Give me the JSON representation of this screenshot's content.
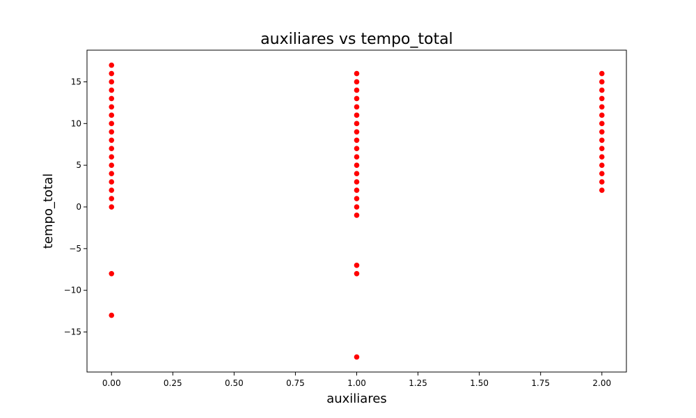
{
  "chart_data": {
    "type": "scatter",
    "title": "auxiliares vs tempo_total",
    "xlabel": "auxiliares",
    "ylabel": "tempo_total",
    "xlim": [
      -0.1,
      2.1
    ],
    "ylim": [
      -19.8,
      18.8
    ],
    "xticks": [
      0.0,
      0.25,
      0.5,
      0.75,
      1.0,
      1.25,
      1.5,
      1.75,
      2.0
    ],
    "xtick_labels": [
      "0.00",
      "0.25",
      "0.50",
      "0.75",
      "1.00",
      "1.25",
      "1.50",
      "1.75",
      "2.00"
    ],
    "yticks": [
      -15,
      -10,
      -5,
      0,
      5,
      10,
      15
    ],
    "ytick_labels": [
      "−15",
      "−10",
      "−5",
      "0",
      "5",
      "10",
      "15"
    ],
    "grid": false,
    "marker_color": "#ff0000",
    "series": [
      {
        "points": [
          [
            0,
            17
          ],
          [
            0,
            16
          ],
          [
            0,
            15
          ],
          [
            0,
            14
          ],
          [
            0,
            13
          ],
          [
            0,
            12
          ],
          [
            0,
            11
          ],
          [
            0,
            10
          ],
          [
            0,
            9
          ],
          [
            0,
            8
          ],
          [
            0,
            7
          ],
          [
            0,
            6
          ],
          [
            0,
            5
          ],
          [
            0,
            4
          ],
          [
            0,
            3
          ],
          [
            0,
            2
          ],
          [
            0,
            1
          ],
          [
            0,
            0
          ],
          [
            0,
            -8
          ],
          [
            0,
            -13
          ],
          [
            1,
            16
          ],
          [
            1,
            15
          ],
          [
            1,
            14
          ],
          [
            1,
            13
          ],
          [
            1,
            12
          ],
          [
            1,
            11
          ],
          [
            1,
            10
          ],
          [
            1,
            9
          ],
          [
            1,
            8
          ],
          [
            1,
            7
          ],
          [
            1,
            6
          ],
          [
            1,
            5
          ],
          [
            1,
            4
          ],
          [
            1,
            3
          ],
          [
            1,
            2
          ],
          [
            1,
            1
          ],
          [
            1,
            0
          ],
          [
            1,
            -1
          ],
          [
            1,
            -7
          ],
          [
            1,
            -8
          ],
          [
            1,
            -18
          ],
          [
            2,
            16
          ],
          [
            2,
            15
          ],
          [
            2,
            14
          ],
          [
            2,
            13
          ],
          [
            2,
            12
          ],
          [
            2,
            11
          ],
          [
            2,
            10
          ],
          [
            2,
            9
          ],
          [
            2,
            8
          ],
          [
            2,
            7
          ],
          [
            2,
            6
          ],
          [
            2,
            5
          ],
          [
            2,
            4
          ],
          [
            2,
            3
          ],
          [
            2,
            2
          ]
        ]
      }
    ]
  }
}
